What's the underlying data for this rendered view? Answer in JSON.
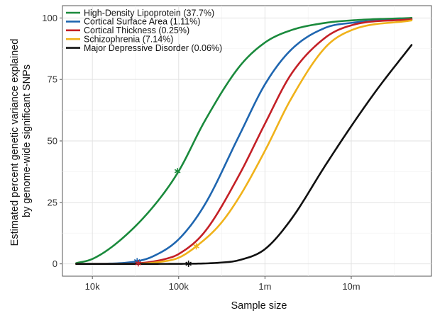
{
  "chart_data": {
    "type": "line",
    "title": "",
    "xlabel": "Sample size",
    "ylabel_lines": [
      "Estimated percent genetic variance explained",
      "by genome-wide significant SNPs"
    ],
    "x_scale": "log10",
    "x_range": [
      4500,
      85000000
    ],
    "y_range": [
      -5,
      105
    ],
    "x_ticks": [
      {
        "value": 10000,
        "label": "10k"
      },
      {
        "value": 100000,
        "label": "100k"
      },
      {
        "value": 1000000,
        "label": "1m"
      },
      {
        "value": 10000000,
        "label": "10m"
      }
    ],
    "y_ticks": [
      {
        "value": 0,
        "label": "0"
      },
      {
        "value": 25,
        "label": "25"
      },
      {
        "value": 50,
        "label": "50"
      },
      {
        "value": 75,
        "label": "75"
      },
      {
        "value": 100,
        "label": "100"
      }
    ],
    "grid": true,
    "legend_position": "top-left",
    "series": [
      {
        "name": "High-Density Lipoprotein (37.7%)",
        "color": "#1a8a3c",
        "points": [
          [
            6500,
            0.3
          ],
          [
            10000,
            2
          ],
          [
            20000,
            9
          ],
          [
            50000,
            23
          ],
          [
            100000,
            37.7
          ],
          [
            200000,
            58
          ],
          [
            500000,
            80
          ],
          [
            1000000,
            90
          ],
          [
            2000000,
            95
          ],
          [
            5000000,
            98
          ],
          [
            10000000,
            99
          ],
          [
            50000000,
            100
          ]
        ],
        "marker": [
          97000,
          37.7
        ]
      },
      {
        "name": "Cortical Surface Area (1.11%)",
        "color": "#1f66b0",
        "points": [
          [
            6500,
            0
          ],
          [
            15000,
            0.1
          ],
          [
            33000,
            1.1
          ],
          [
            50000,
            3
          ],
          [
            100000,
            10
          ],
          [
            200000,
            24
          ],
          [
            500000,
            52
          ],
          [
            1000000,
            73
          ],
          [
            2000000,
            87
          ],
          [
            5000000,
            96
          ],
          [
            10000000,
            98
          ],
          [
            50000000,
            99.5
          ]
        ],
        "marker": [
          33000,
          1.1
        ]
      },
      {
        "name": "Cortical Thickness (0.25%)",
        "color": "#c42026",
        "points": [
          [
            6500,
            0
          ],
          [
            20000,
            0
          ],
          [
            35000,
            0.25
          ],
          [
            70000,
            2
          ],
          [
            100000,
            4
          ],
          [
            200000,
            13
          ],
          [
            500000,
            36
          ],
          [
            1000000,
            57
          ],
          [
            2000000,
            77
          ],
          [
            5000000,
            92
          ],
          [
            10000000,
            97
          ],
          [
            50000000,
            99.5
          ]
        ],
        "marker": [
          34000,
          0.25
        ]
      },
      {
        "name": "Schizophrenia (7.14%)",
        "color": "#f0b21a",
        "points": [
          [
            6500,
            0
          ],
          [
            30000,
            0
          ],
          [
            60000,
            0.8
          ],
          [
            100000,
            2.5
          ],
          [
            160000,
            7.14
          ],
          [
            300000,
            16
          ],
          [
            500000,
            27
          ],
          [
            1000000,
            46
          ],
          [
            2000000,
            67
          ],
          [
            5000000,
            88
          ],
          [
            10000000,
            95
          ],
          [
            50000000,
            99
          ]
        ],
        "marker": [
          160000,
          7.14
        ]
      },
      {
        "name": "Major Depressive Disorder (0.06%)",
        "color": "#111111",
        "points": [
          [
            6500,
            0
          ],
          [
            50000,
            0
          ],
          [
            130000,
            0.06
          ],
          [
            300000,
            0.5
          ],
          [
            500000,
            1.5
          ],
          [
            1000000,
            6
          ],
          [
            2000000,
            18
          ],
          [
            5000000,
            40
          ],
          [
            10000000,
            56
          ],
          [
            20000000,
            71
          ],
          [
            50000000,
            89
          ]
        ],
        "marker": [
          130000,
          0.06
        ]
      }
    ]
  }
}
